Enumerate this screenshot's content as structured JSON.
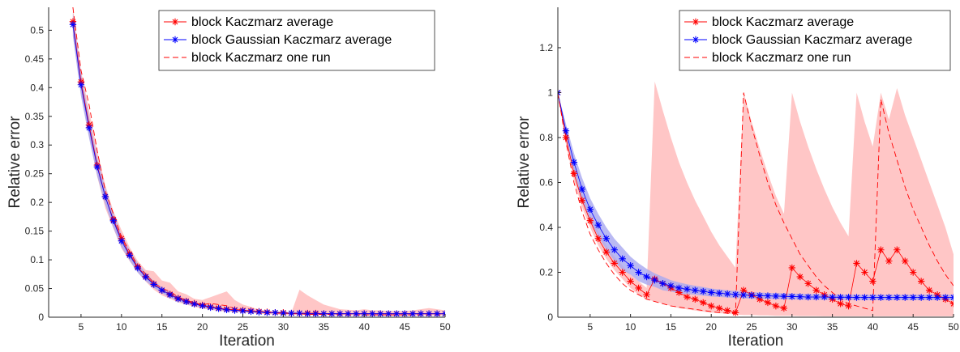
{
  "colors": {
    "red": "#ff0000",
    "blue": "#0000ff",
    "redBand": "#ffb3b3",
    "blueBand": "#a8a8f0",
    "axis": "#262626"
  },
  "chart_data": [
    {
      "type": "line",
      "xlabel": "Iteration",
      "ylabel": "Relative error",
      "xlim": [
        1,
        50
      ],
      "ylim": [
        0,
        0.54
      ],
      "xticks": [
        5,
        10,
        15,
        20,
        25,
        30,
        35,
        40,
        45,
        50
      ],
      "yticks": [
        0,
        0.05,
        0.1,
        0.15,
        0.2,
        0.25,
        0.3,
        0.35,
        0.4,
        0.45,
        0.5
      ],
      "legend_position": "top-right",
      "legend": [
        "block Kaczmarz average",
        "block Gaussian Kaczmarz average",
        "block Kaczmarz one run"
      ],
      "x": [
        4,
        5,
        6,
        7,
        8,
        9,
        10,
        11,
        12,
        13,
        14,
        15,
        16,
        17,
        18,
        19,
        20,
        21,
        22,
        23,
        24,
        25,
        26,
        27,
        28,
        29,
        30,
        31,
        32,
        33,
        34,
        35,
        36,
        37,
        38,
        39,
        40,
        41,
        42,
        43,
        44,
        45,
        46,
        47,
        48,
        49,
        50
      ],
      "series": [
        {
          "name": "block Kaczmarz average",
          "color": "red",
          "style": "marker",
          "values": [
            0.515,
            0.41,
            0.335,
            0.265,
            0.21,
            0.17,
            0.137,
            0.11,
            0.088,
            0.071,
            0.058,
            0.047,
            0.04,
            0.033,
            0.028,
            0.024,
            0.021,
            0.018,
            0.016,
            0.014,
            0.013,
            0.012,
            0.011,
            0.01,
            0.009,
            0.008,
            0.008,
            0.007,
            0.007,
            0.007,
            0.007,
            0.006,
            0.006,
            0.006,
            0.006,
            0.006,
            0.006,
            0.006,
            0.006,
            0.006,
            0.006,
            0.006,
            0.006,
            0.006,
            0.006,
            0.006,
            0.006
          ],
          "band_upper": [
            0.54,
            0.43,
            0.36,
            0.29,
            0.23,
            0.185,
            0.152,
            0.122,
            0.098,
            0.082,
            0.08,
            0.064,
            0.06,
            0.045,
            0.04,
            0.032,
            0.03,
            0.035,
            0.04,
            0.045,
            0.03,
            0.022,
            0.018,
            0.013,
            0.012,
            0.01,
            0.01,
            0.008,
            0.048,
            0.038,
            0.03,
            0.022,
            0.018,
            0.014,
            0.013,
            0.012,
            0.014,
            0.012,
            0.012,
            0.011,
            0.011,
            0.011,
            0.012,
            0.014,
            0.016,
            0.014,
            0.012
          ],
          "band_lower": [
            0.49,
            0.39,
            0.315,
            0.245,
            0.19,
            0.155,
            0.12,
            0.098,
            0.078,
            0.062,
            0.048,
            0.038,
            0.032,
            0.026,
            0.022,
            0.018,
            0.015,
            0.013,
            0.011,
            0.01,
            0.009,
            0.008,
            0.007,
            0.006,
            0.005,
            0.005,
            0.004,
            0.004,
            0.004,
            0.004,
            0.004,
            0.004,
            0.003,
            0.003,
            0.003,
            0.003,
            0.003,
            0.003,
            0.003,
            0.003,
            0.003,
            0.003,
            0.003,
            0.003,
            0.003,
            0.003,
            0.003
          ]
        },
        {
          "name": "block Gaussian Kaczmarz average",
          "color": "blue",
          "style": "marker",
          "values": [
            0.51,
            0.405,
            0.33,
            0.262,
            0.21,
            0.168,
            0.133,
            0.108,
            0.086,
            0.07,
            0.057,
            0.047,
            0.039,
            0.032,
            0.027,
            0.023,
            0.02,
            0.017,
            0.015,
            0.013,
            0.012,
            0.011,
            0.01,
            0.009,
            0.008,
            0.008,
            0.007,
            0.007,
            0.007,
            0.006,
            0.006,
            0.006,
            0.006,
            0.006,
            0.006,
            0.006,
            0.006,
            0.006,
            0.006,
            0.006,
            0.006,
            0.006,
            0.006,
            0.006,
            0.006,
            0.006,
            0.006
          ],
          "band_upper": [
            0.53,
            0.425,
            0.348,
            0.278,
            0.224,
            0.18,
            0.144,
            0.117,
            0.094,
            0.077,
            0.063,
            0.052,
            0.044,
            0.036,
            0.031,
            0.026,
            0.023,
            0.02,
            0.017,
            0.015,
            0.014,
            0.013,
            0.012,
            0.011,
            0.01,
            0.009,
            0.009,
            0.008,
            0.008,
            0.008,
            0.007,
            0.007,
            0.007,
            0.007,
            0.007,
            0.007,
            0.007,
            0.007,
            0.007,
            0.007,
            0.007,
            0.007,
            0.007,
            0.007,
            0.007,
            0.007,
            0.007
          ],
          "band_lower": [
            0.49,
            0.385,
            0.312,
            0.246,
            0.196,
            0.156,
            0.122,
            0.099,
            0.078,
            0.063,
            0.051,
            0.042,
            0.034,
            0.028,
            0.023,
            0.02,
            0.017,
            0.014,
            0.013,
            0.011,
            0.01,
            0.009,
            0.008,
            0.007,
            0.007,
            0.006,
            0.006,
            0.006,
            0.005,
            0.005,
            0.005,
            0.005,
            0.005,
            0.005,
            0.005,
            0.005,
            0.005,
            0.005,
            0.005,
            0.005,
            0.005,
            0.005,
            0.005,
            0.005,
            0.005,
            0.005,
            0.005
          ]
        },
        {
          "name": "block Kaczmarz one run",
          "color": "red",
          "style": "dashed",
          "values": [
            0.54,
            0.43,
            0.37,
            0.29,
            0.22,
            0.18,
            0.14,
            0.115,
            0.09,
            0.075,
            0.06,
            0.05,
            0.045,
            0.035,
            0.03,
            0.025,
            0.022,
            0.024,
            0.022,
            0.02,
            0.015,
            0.013,
            0.011,
            0.01,
            0.008,
            0.007,
            0.007,
            0.006,
            0.006,
            0.005,
            0.005,
            0.005,
            0.005,
            0.004,
            0.004,
            0.004,
            0.004,
            0.004,
            0.004,
            0.004,
            0.004,
            0.004,
            0.004,
            0.004,
            0.004,
            0.004,
            0.004
          ]
        }
      ]
    },
    {
      "type": "line",
      "xlabel": "Iteration",
      "ylabel": "Relative error",
      "xlim": [
        1,
        50
      ],
      "ylim": [
        0,
        1.38
      ],
      "xticks": [
        5,
        10,
        15,
        20,
        25,
        30,
        35,
        40,
        45,
        50
      ],
      "yticks": [
        0,
        0.2,
        0.4,
        0.6,
        0.8,
        1,
        1.2
      ],
      "legend_position": "top-right",
      "legend": [
        "block Kaczmarz average",
        "block Gaussian Kaczmarz average",
        "block Kaczmarz one run"
      ],
      "x": [
        1,
        2,
        3,
        4,
        5,
        6,
        7,
        8,
        9,
        10,
        11,
        12,
        13,
        14,
        15,
        16,
        17,
        18,
        19,
        20,
        21,
        22,
        23,
        24,
        25,
        26,
        27,
        28,
        29,
        30,
        31,
        32,
        33,
        34,
        35,
        36,
        37,
        38,
        39,
        40,
        41,
        42,
        43,
        44,
        45,
        46,
        47,
        48,
        49,
        50
      ],
      "series": [
        {
          "name": "block Kaczmarz average",
          "color": "red",
          "style": "marker",
          "values": [
            1,
            0.8,
            0.64,
            0.52,
            0.43,
            0.35,
            0.29,
            0.24,
            0.2,
            0.16,
            0.13,
            0.1,
            0.17,
            0.15,
            0.13,
            0.11,
            0.09,
            0.08,
            0.065,
            0.05,
            0.04,
            0.03,
            0.02,
            0.12,
            0.1,
            0.08,
            0.065,
            0.05,
            0.04,
            0.22,
            0.18,
            0.15,
            0.12,
            0.1,
            0.08,
            0.06,
            0.05,
            0.24,
            0.2,
            0.16,
            0.3,
            0.25,
            0.3,
            0.25,
            0.2,
            0.16,
            0.12,
            0.1,
            0.08,
            0.06
          ],
          "band_upper": [
            1,
            0.83,
            0.67,
            0.55,
            0.46,
            0.38,
            0.32,
            0.27,
            0.23,
            0.19,
            0.16,
            0.13,
            1.05,
            0.92,
            0.8,
            0.69,
            0.6,
            0.52,
            0.45,
            0.38,
            0.32,
            0.27,
            0.22,
            1.0,
            0.87,
            0.75,
            0.64,
            0.54,
            0.46,
            1.0,
            0.87,
            0.76,
            0.66,
            0.57,
            0.49,
            0.42,
            0.36,
            1.0,
            0.87,
            0.76,
            1.0,
            0.88,
            1.02,
            0.9,
            0.8,
            0.7,
            0.6,
            0.5,
            0.4,
            0.28
          ],
          "band_lower": [
            1,
            0.77,
            0.61,
            0.49,
            0.4,
            0.32,
            0.26,
            0.21,
            0.17,
            0.13,
            0.1,
            0.08,
            0.07,
            0.06,
            0.05,
            0.04,
            0.035,
            0.03,
            0.025,
            0.02,
            0.018,
            0.015,
            0.012,
            0.01,
            0.01,
            0.008,
            0.008,
            0.006,
            0.006,
            0.006,
            0.005,
            0.005,
            0.005,
            0.004,
            0.004,
            0.004,
            0.004,
            0.004,
            0.004,
            0.004,
            0.004,
            0.004,
            0.004,
            0.004,
            0.004,
            0.004,
            0.004,
            0.004,
            0.004,
            0.004
          ]
        },
        {
          "name": "block Gaussian Kaczmarz average",
          "color": "blue",
          "style": "marker",
          "values": [
            1,
            0.83,
            0.69,
            0.57,
            0.48,
            0.41,
            0.35,
            0.3,
            0.26,
            0.23,
            0.2,
            0.18,
            0.165,
            0.15,
            0.14,
            0.13,
            0.125,
            0.12,
            0.115,
            0.11,
            0.107,
            0.104,
            0.101,
            0.099,
            0.097,
            0.096,
            0.095,
            0.094,
            0.093,
            0.092,
            0.091,
            0.09,
            0.09,
            0.09,
            0.089,
            0.089,
            0.089,
            0.088,
            0.088,
            0.088,
            0.088,
            0.088,
            0.088,
            0.088,
            0.088,
            0.088,
            0.088,
            0.088,
            0.088,
            0.088
          ],
          "band_upper": [
            1,
            0.86,
            0.73,
            0.62,
            0.53,
            0.46,
            0.4,
            0.35,
            0.31,
            0.27,
            0.24,
            0.215,
            0.195,
            0.18,
            0.165,
            0.155,
            0.147,
            0.14,
            0.134,
            0.128,
            0.124,
            0.12,
            0.117,
            0.114,
            0.112,
            0.11,
            0.108,
            0.107,
            0.106,
            0.105,
            0.104,
            0.103,
            0.102,
            0.102,
            0.101,
            0.101,
            0.1,
            0.1,
            0.1,
            0.1,
            0.1,
            0.1,
            0.1,
            0.1,
            0.1,
            0.1,
            0.1,
            0.1,
            0.1,
            0.1
          ],
          "band_lower": [
            1,
            0.8,
            0.65,
            0.52,
            0.43,
            0.36,
            0.3,
            0.25,
            0.21,
            0.19,
            0.16,
            0.145,
            0.135,
            0.12,
            0.115,
            0.105,
            0.103,
            0.1,
            0.096,
            0.092,
            0.09,
            0.088,
            0.085,
            0.084,
            0.082,
            0.082,
            0.082,
            0.081,
            0.08,
            0.079,
            0.078,
            0.077,
            0.078,
            0.078,
            0.077,
            0.077,
            0.078,
            0.076,
            0.076,
            0.076,
            0.076,
            0.076,
            0.076,
            0.076,
            0.076,
            0.076,
            0.076,
            0.076,
            0.076,
            0.076
          ]
        },
        {
          "name": "block Kaczmarz one run",
          "color": "red",
          "style": "dashed",
          "values": [
            1,
            0.78,
            0.6,
            0.47,
            0.37,
            0.3,
            0.24,
            0.19,
            0.15,
            0.12,
            0.1,
            0.08,
            0.07,
            0.06,
            0.05,
            0.045,
            0.04,
            0.035,
            0.03,
            0.025,
            0.02,
            0.018,
            0.015,
            1.0,
            0.85,
            0.72,
            0.6,
            0.5,
            0.42,
            0.35,
            0.28,
            0.23,
            0.18,
            0.14,
            0.11,
            0.08,
            0.06,
            0.05,
            0.04,
            0.03,
            0.97,
            0.82,
            0.7,
            0.58,
            0.48,
            0.4,
            0.32,
            0.25,
            0.19,
            0.14
          ]
        }
      ]
    }
  ]
}
